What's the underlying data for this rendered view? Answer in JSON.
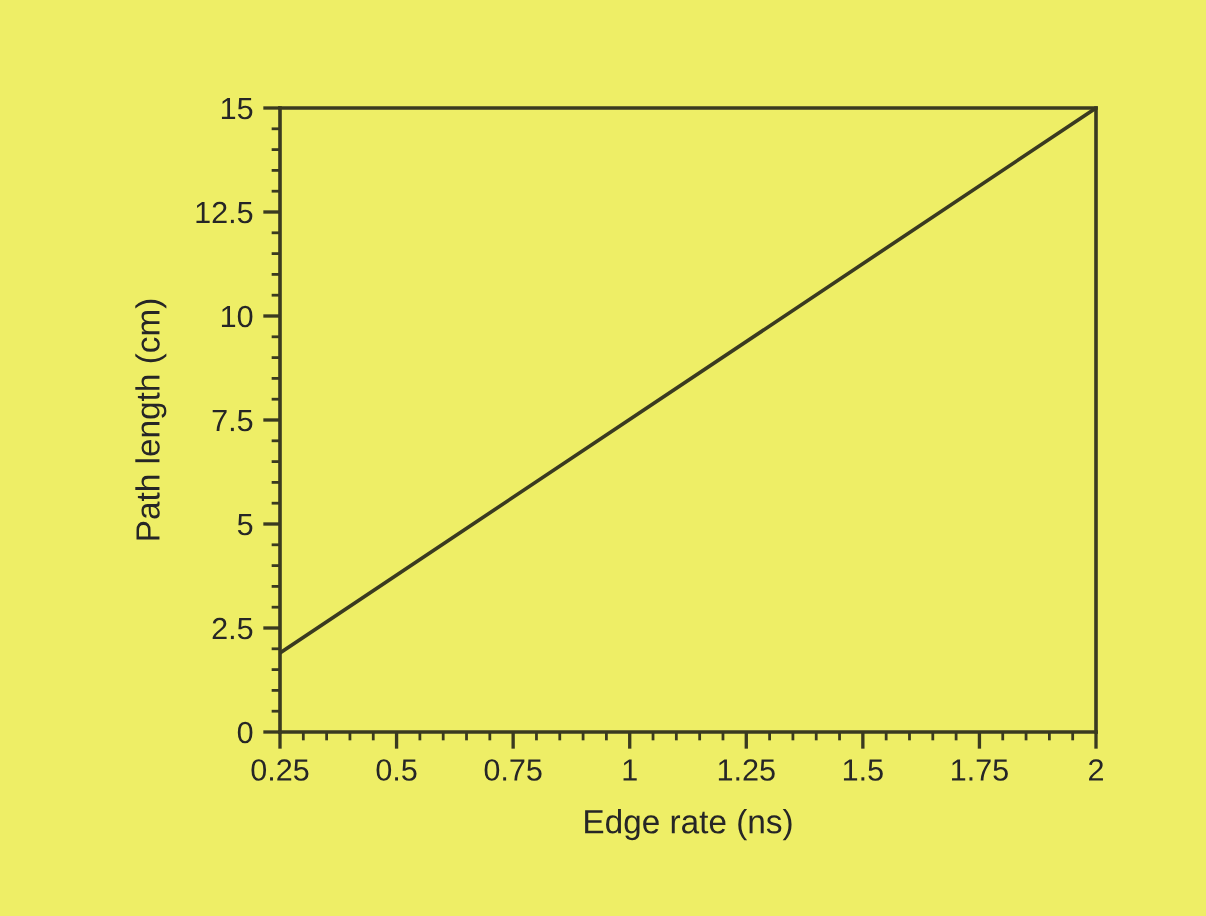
{
  "chart_data": {
    "type": "line",
    "xlabel": "Edge rate (ns)",
    "ylabel": "Path length (cm)",
    "x": [
      0.25,
      2
    ],
    "series": [
      {
        "color": "#3a3a20",
        "values": [
          1.9,
          15
        ]
      }
    ],
    "xlim": [
      0.25,
      2
    ],
    "xticks": [
      0.25,
      0.5,
      0.75,
      1,
      1.25,
      1.5,
      1.75,
      2
    ],
    "ylim": [
      0,
      15
    ],
    "yticks": [
      0,
      2.5,
      5,
      7.5,
      10,
      12.5,
      15
    ],
    "grid": false,
    "marker": "none",
    "line_style": "solid"
  }
}
